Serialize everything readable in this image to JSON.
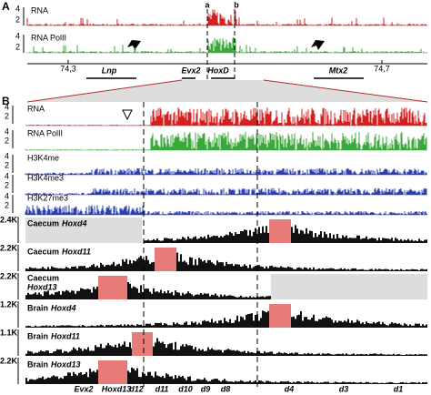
{
  "panel_a": {
    "label": "A",
    "markers": [
      "a",
      "b"
    ],
    "tracks": [
      {
        "name": "RNA",
        "ticks": [
          "4",
          "2"
        ]
      },
      {
        "name": "RNA PolII",
        "ticks": [
          "4",
          "2"
        ]
      }
    ],
    "coordinates": [
      "74,3",
      "74,7"
    ],
    "genes": [
      "Lnp",
      "Evx2",
      "HoxD",
      "Mtx2"
    ]
  },
  "panel_b": {
    "label": "B",
    "tracks": [
      {
        "name": "RNA",
        "ticks": [
          "4",
          "2"
        ]
      },
      {
        "name": "RNA PolII",
        "ticks": [
          "4",
          "2"
        ]
      },
      {
        "name": "H3K4me",
        "ticks": [
          "4",
          "2"
        ]
      },
      {
        "name": "H3K4me3",
        "ticks": [
          "4",
          "2"
        ]
      },
      {
        "name": "H3K27me3",
        "ticks": [
          "4",
          "2"
        ]
      }
    ],
    "four_c": [
      {
        "scale": "2.4K",
        "tissue": "Caecum",
        "gene": "Hoxd4"
      },
      {
        "scale": "2.2K",
        "tissue": "Caecum",
        "gene": "Hoxd11"
      },
      {
        "scale": "2.2K",
        "tissue": "Caecum",
        "gene": "Hoxd13"
      },
      {
        "scale": "1.2K",
        "tissue": "Brain",
        "gene": "Hoxd4"
      },
      {
        "scale": "1.1K",
        "tissue": "Brain",
        "gene": "Hoxd11"
      },
      {
        "scale": "2.2K",
        "tissue": "Brain",
        "gene": "Hoxd13"
      }
    ],
    "genes": [
      "Evx2",
      "Hoxd13",
      "d12",
      "d11",
      "d10",
      "d9",
      "d8",
      "d4",
      "d3",
      "d1"
    ]
  }
}
